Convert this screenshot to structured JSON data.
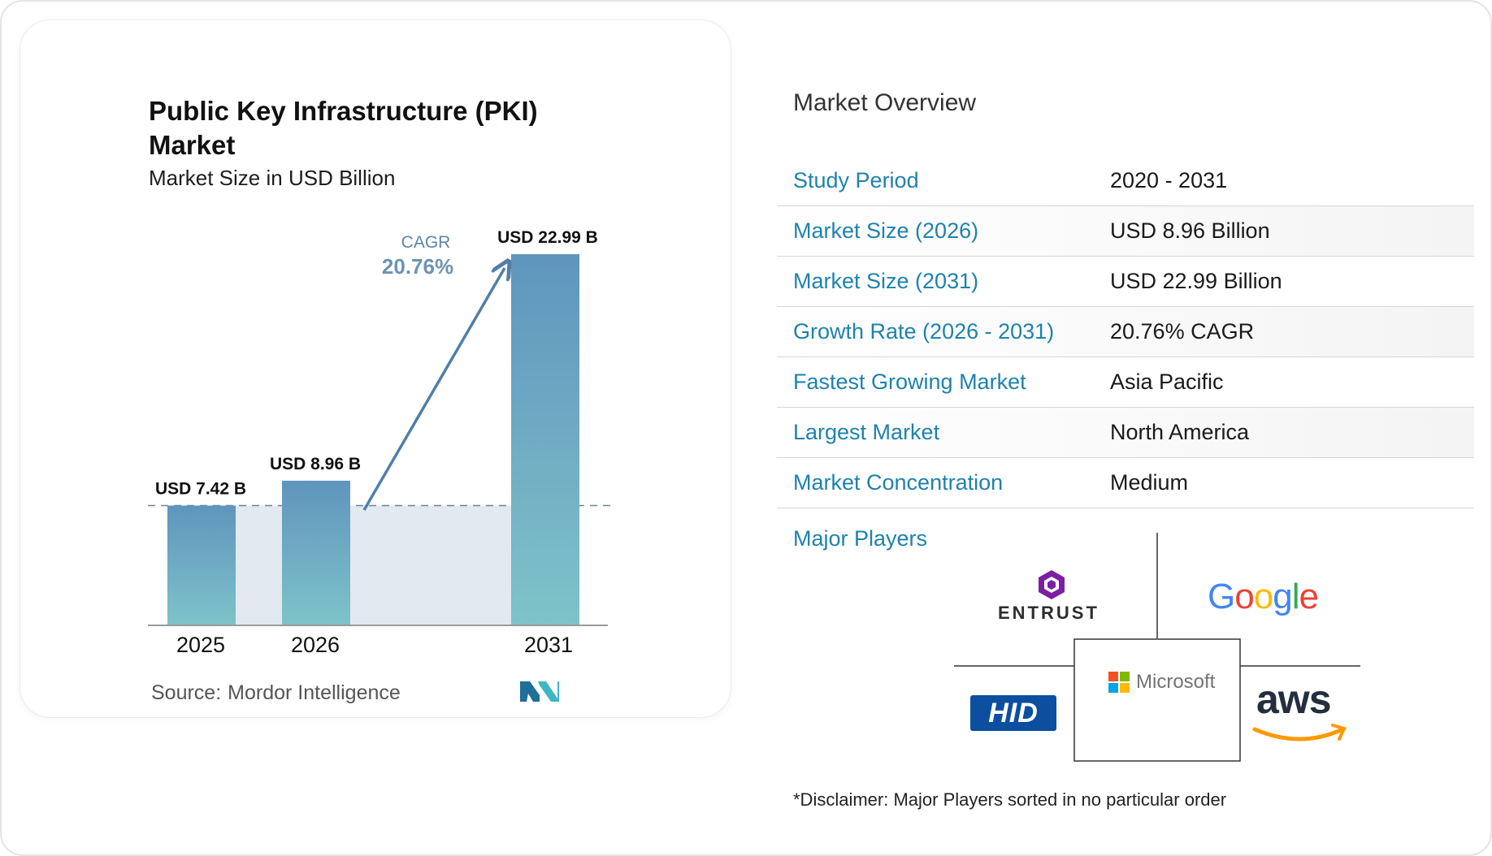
{
  "chart_data": {
    "type": "bar",
    "title": "Public Key Infrastructure (PKI) Market",
    "subtitle": "Market Size in USD Billion",
    "categories": [
      "2025",
      "2026",
      "2031"
    ],
    "values": [
      7.42,
      8.96,
      22.99
    ],
    "data_labels": [
      "USD 7.42 B",
      "USD 8.96 B",
      "USD 22.99 B"
    ],
    "cagr_label": "CAGR",
    "cagr_value": "20.76%",
    "ylim": [
      0,
      25
    ],
    "grid": false,
    "legend": "none",
    "bar_color_top": "#5f95bd",
    "bar_color_bottom": "#7ec3c9",
    "arrow_color": "#4f7fa8"
  },
  "source": {
    "label": "Source:",
    "value": "Mordor Intelligence"
  },
  "overview": {
    "title": "Market Overview",
    "rows": [
      {
        "label": "Study Period",
        "value": "2020 - 2031"
      },
      {
        "label": "Market Size (2026)",
        "value": "USD 8.96 Billion"
      },
      {
        "label": "Market Size (2031)",
        "value": "USD 22.99 Billion"
      },
      {
        "label": "Growth Rate (2026 - 2031)",
        "value": "20.76% CAGR"
      },
      {
        "label": "Fastest Growing Market",
        "value": "Asia Pacific"
      },
      {
        "label": "Largest Market",
        "value": "North America"
      },
      {
        "label": "Market Concentration",
        "value": "Medium"
      }
    ],
    "label_color": "#1e82ad"
  },
  "players": {
    "label": "Major Players",
    "entrust": "ENTRUST",
    "google": "Google",
    "microsoft": "Microsoft",
    "hid": "HID",
    "aws": "aws"
  },
  "disclaimer": "*Disclaimer: Major Players sorted in no particular order"
}
